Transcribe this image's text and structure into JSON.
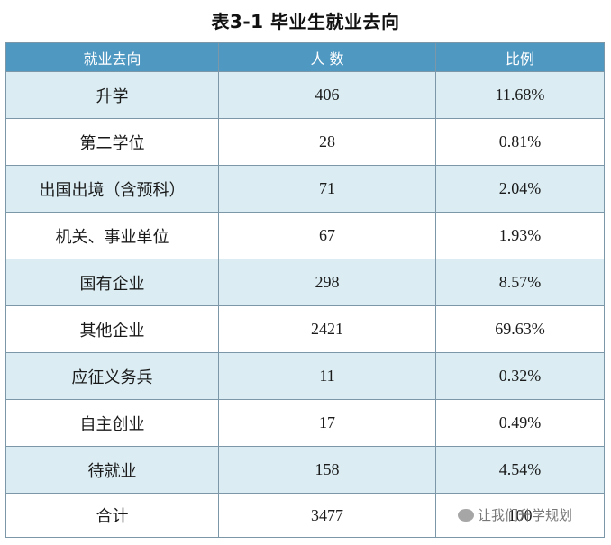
{
  "title": "表3-1  毕业生就业去向",
  "columns": [
    "就业去向",
    "人 数",
    "比例"
  ],
  "rows": [
    {
      "category": "升学",
      "count": "406",
      "ratio": "11.68%"
    },
    {
      "category": "第二学位",
      "count": "28",
      "ratio": "0.81%"
    },
    {
      "category": "出国出境（含预科）",
      "count": "71",
      "ratio": "2.04%"
    },
    {
      "category": "机关、事业单位",
      "count": "67",
      "ratio": "1.93%"
    },
    {
      "category": "国有企业",
      "count": "298",
      "ratio": "8.57%"
    },
    {
      "category": "其他企业",
      "count": "2421",
      "ratio": "69.63%"
    },
    {
      "category": "应征义务兵",
      "count": "11",
      "ratio": "0.32%"
    },
    {
      "category": "自主创业",
      "count": "17",
      "ratio": "0.49%"
    },
    {
      "category": "待就业",
      "count": "158",
      "ratio": "4.54%"
    }
  ],
  "total": {
    "category": "合计",
    "count": "3477",
    "ratio": "100"
  },
  "watermark": {
    "text": "让我们升学规划",
    "icon": "wechat-icon"
  }
}
